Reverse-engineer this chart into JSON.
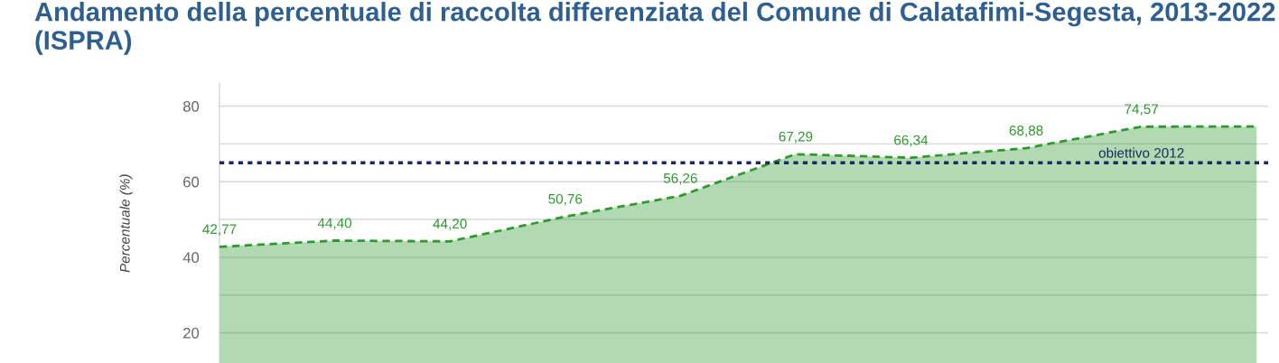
{
  "chart_data": {
    "type": "area",
    "title": "Andamento della percentuale di raccolta differenziata del Comune di Calatafimi-Segesta, 2013-2022 (ISPRA)",
    "ylabel": "Percentuale (%)",
    "categories": [
      null,
      null,
      null,
      null,
      null,
      null,
      null,
      null,
      null,
      null
    ],
    "series": [
      {
        "color": "#2e9a2e",
        "values": [
          42.77,
          44.4,
          44.2,
          50.76,
          56.26,
          67.29,
          66.34,
          68.88,
          74.57,
          74.6
        ],
        "value_labels": [
          "42,77",
          "44,40",
          "44,20",
          "50,76",
          "56,26",
          "67,29",
          "66,34",
          "68,88",
          "74,57",
          null
        ]
      }
    ],
    "ylim": [
      12,
      86
    ],
    "yticks": [
      20,
      {
        "value": 30,
        "label": null
      },
      40,
      {
        "value": 50,
        "label": null
      },
      60,
      {
        "value": 70,
        "label": null
      },
      80
    ],
    "grid": "y",
    "line_style": "dashed",
    "marker": "none",
    "tick_labels": "y",
    "ref_lines": [
      {
        "axis": "y",
        "value": 65,
        "label": "obiettivo 2012",
        "color": "#1a2a5e",
        "line_style": "dotted"
      }
    ]
  }
}
